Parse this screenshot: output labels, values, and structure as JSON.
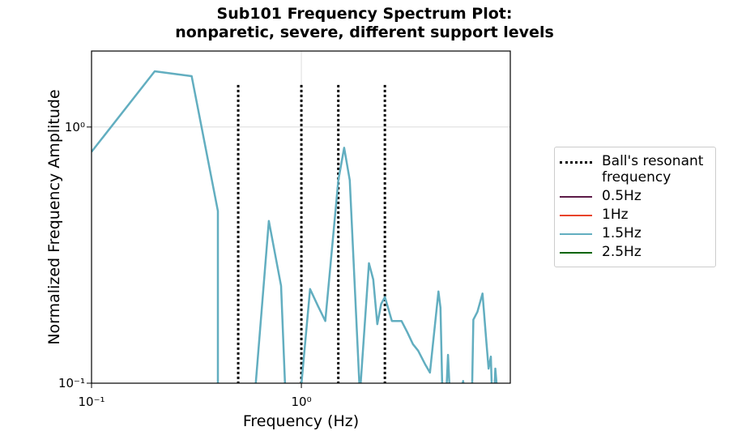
{
  "chart_data": {
    "type": "line",
    "title": "Sub101 Frequency Spectrum Plot:\nnonparetic, severe, different support levels",
    "xlabel": "Frequency (Hz)",
    "ylabel": "Normalized Frequency Amplitude",
    "xscale": "log",
    "yscale": "log",
    "xlim": [
      0.1,
      9.9
    ],
    "ylim": [
      0.1,
      1.98
    ],
    "xticks": [
      {
        "value": 0.1,
        "label": "10⁻¹"
      },
      {
        "value": 1,
        "label": "10⁰"
      }
    ],
    "yticks": [
      {
        "value": 0.1,
        "label": "10⁻¹"
      },
      {
        "value": 1,
        "label": "10⁰"
      }
    ],
    "grid": true,
    "legend": "outside right",
    "resonance": {
      "name": "Ball's resonant frequency",
      "color": "#000000",
      "x": [
        0.5,
        1,
        1.5,
        2.5
      ],
      "ymax": 1.46
    },
    "series": [
      {
        "name": "0.5Hz",
        "color": "#5c1a47",
        "x": [],
        "values": []
      },
      {
        "name": "1Hz",
        "color": "#e8432a",
        "x": [],
        "values": []
      },
      {
        "name": "1.5Hz",
        "color": "#62aec0",
        "x": [
          0.1,
          0.2,
          0.3,
          0.4,
          0.4,
          0.4,
          0.6,
          0.7,
          0.8,
          0.84,
          0.84,
          0.99,
          1.1,
          1.2,
          1.3,
          1.5,
          1.6,
          1.7,
          1.9,
          2.1,
          2.2,
          2.3,
          2.4,
          2.5,
          2.7,
          3.0,
          3.2,
          3.4,
          3.6,
          3.9,
          4.1,
          4.5,
          4.6,
          4.7,
          4.7,
          4.9,
          5.0,
          5.1,
          5.1,
          5.7,
          5.9,
          6.0,
          6.0,
          6.5,
          6.6,
          6.9,
          7.3,
          7.6,
          7.8,
          8.0,
          8.1,
          8.1,
          8.3,
          8.4,
          8.6
        ],
        "values": [
          0.8,
          1.65,
          1.58,
          0.47,
          0.09,
          null,
          0.09,
          0.43,
          0.24,
          0.09,
          null,
          0.09,
          0.233,
          0.2,
          0.175,
          0.62,
          0.83,
          0.62,
          0.09,
          0.294,
          0.254,
          0.17,
          0.204,
          0.217,
          0.175,
          0.175,
          0.158,
          0.142,
          0.134,
          0.118,
          0.11,
          0.228,
          0.197,
          0.09,
          null,
          0.09,
          0.129,
          0.09,
          null,
          0.09,
          0.102,
          0.09,
          null,
          0.09,
          0.177,
          0.19,
          0.224,
          0.147,
          0.114,
          0.127,
          0.09,
          null,
          0.09,
          0.114,
          0.09
        ]
      },
      {
        "name": "2.5Hz",
        "color": "#006400",
        "x": [],
        "values": []
      }
    ]
  }
}
